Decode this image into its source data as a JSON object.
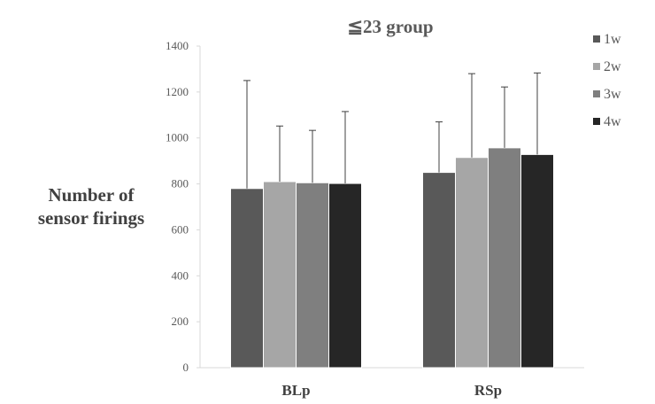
{
  "chart_data": {
    "type": "bar",
    "title": "≦23 group",
    "xlabel": "",
    "ylabel": [
      "Number of",
      "sensor firings"
    ],
    "ylim": [
      0,
      1400
    ],
    "yticks": [
      0,
      200,
      400,
      600,
      800,
      1000,
      1200,
      1400
    ],
    "categories": [
      "BLp",
      "RSp"
    ],
    "legend_position": "right",
    "grid": false,
    "series": [
      {
        "name": "1w",
        "color": "#595959",
        "values": [
          780,
          850
        ],
        "error": [
          470,
          220
        ]
      },
      {
        "name": "2w",
        "color": "#a6a6a6",
        "values": [
          810,
          915
        ],
        "error": [
          242,
          365
        ]
      },
      {
        "name": "3w",
        "color": "#7f7f7f",
        "values": [
          805,
          957
        ],
        "error": [
          228,
          265
        ]
      },
      {
        "name": "4w",
        "color": "#262626",
        "values": [
          802,
          928
        ],
        "error": [
          313,
          355
        ]
      }
    ]
  }
}
